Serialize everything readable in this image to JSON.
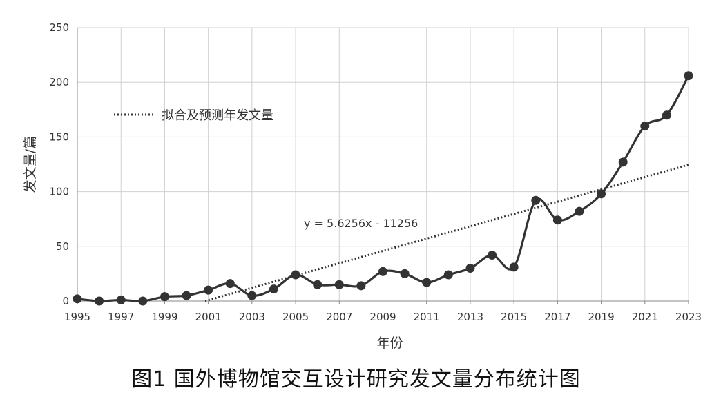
{
  "caption": "图1 国外博物馆交互设计研究发文量分布统计图",
  "colors": {
    "series": "#333333",
    "grid": "#d0d0d0",
    "axis": "#888888",
    "text": "#333333"
  },
  "chart_data": {
    "type": "line",
    "xlabel": "年份",
    "ylabel": "发文量/篇",
    "xlim": [
      1995,
      2023
    ],
    "ylim": [
      0,
      250
    ],
    "yticks": [
      0,
      50,
      100,
      150,
      200,
      250
    ],
    "xticks": [
      1995,
      1997,
      1999,
      2001,
      2003,
      2005,
      2007,
      2009,
      2011,
      2013,
      2015,
      2017,
      2019,
      2021,
      2023
    ],
    "grid": true,
    "series": [
      {
        "x": [
          1995,
          1996,
          1997,
          1998,
          1999,
          2000,
          2001,
          2002,
          2003,
          2004,
          2005,
          2006,
          2007,
          2008,
          2009,
          2010,
          2011,
          2012,
          2013,
          2014,
          2015,
          2016,
          2017,
          2018,
          2019,
          2020,
          2021,
          2022,
          2023
        ],
        "y": [
          2,
          0,
          1,
          0,
          4,
          5,
          10,
          16,
          5,
          11,
          24,
          15,
          15,
          14,
          27,
          25,
          17,
          24,
          30,
          42,
          31,
          92,
          74,
          82,
          98,
          127,
          160,
          170,
          206
        ],
        "style": "solid-with-markers"
      }
    ],
    "trendline": {
      "name": "拟合及预测年发文量",
      "slope": 5.6256,
      "intercept": -11256,
      "equation": "y = 5.6256x - 11256",
      "style": "dotted"
    },
    "legend_position": "upper-left"
  }
}
